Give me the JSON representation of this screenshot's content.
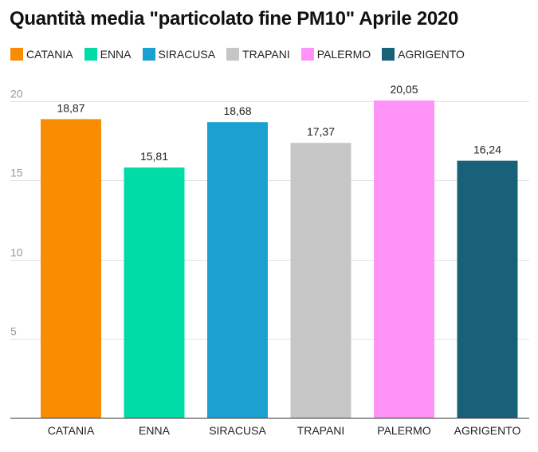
{
  "chart_data": {
    "type": "bar",
    "title": "Quantità media \"particolato fine PM10\" Aprile 2020",
    "categories": [
      "CATANIA",
      "ENNA",
      "SIRACUSA",
      "TRAPANI",
      "PALERMO",
      "AGRIGENTO"
    ],
    "values": [
      18.87,
      15.81,
      18.68,
      17.37,
      20.05,
      16.24
    ],
    "value_labels": [
      "18,87",
      "15,81",
      "18,68",
      "17,37",
      "20,05",
      "16,24"
    ],
    "colors": [
      "#f98c00",
      "#00dca6",
      "#1aa1d2",
      "#c6c6c6",
      "#ff93f7",
      "#186179"
    ],
    "ylim": [
      0,
      20
    ],
    "yticks": [
      5,
      10,
      15,
      20
    ],
    "ytick_labels": [
      "5",
      "10",
      "15",
      "20"
    ],
    "xlabel": "",
    "ylabel": "",
    "grid": true,
    "legend_position": "top-left"
  }
}
